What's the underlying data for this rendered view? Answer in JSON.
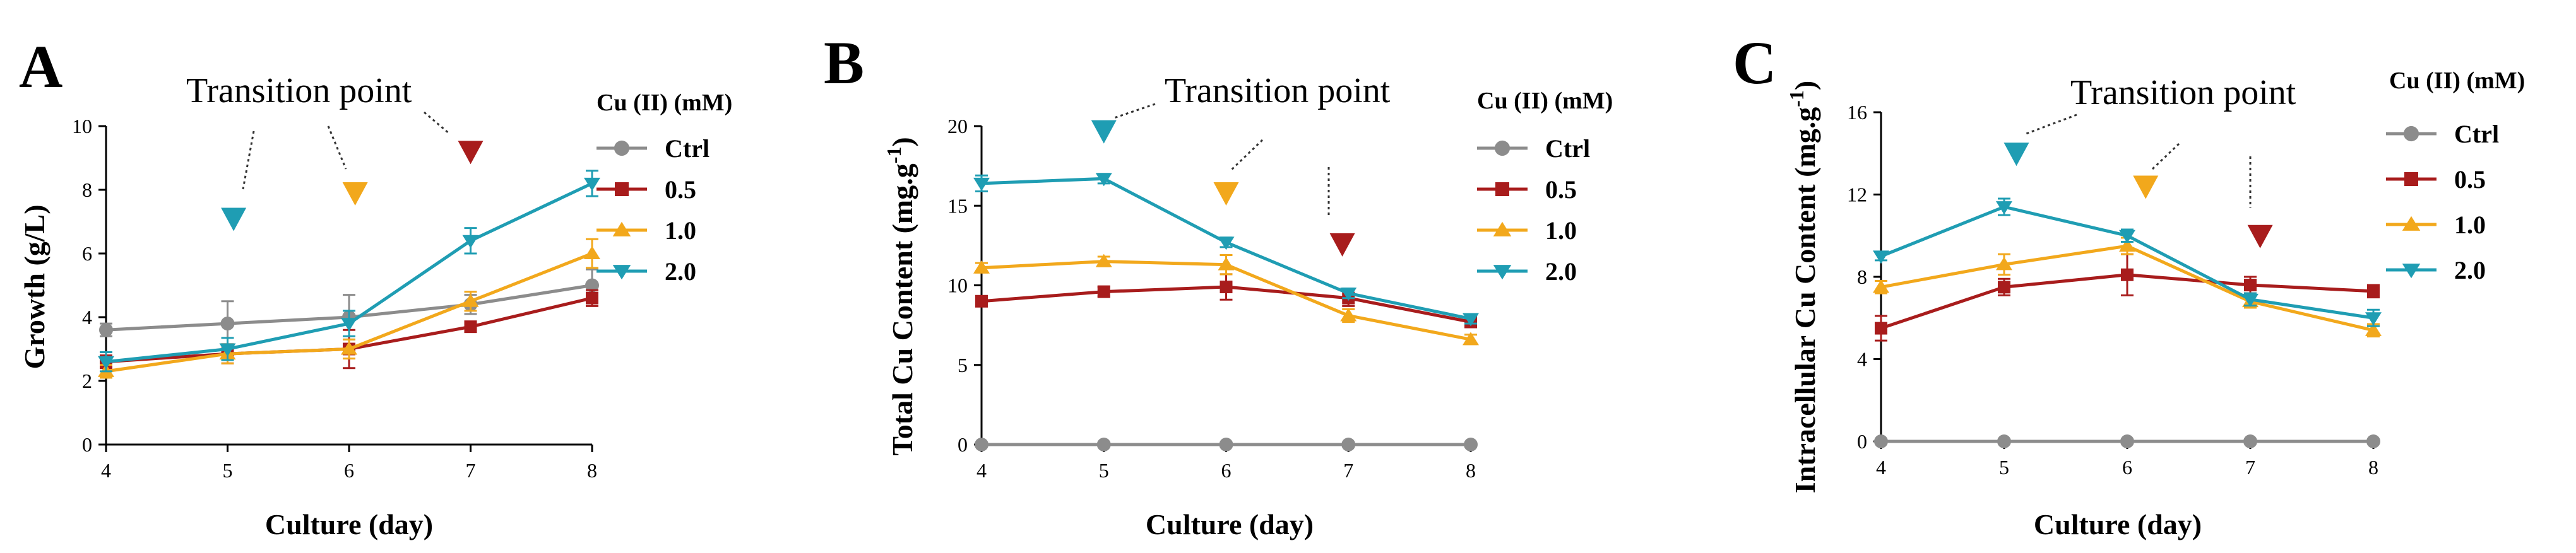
{
  "colors": {
    "Ctrl": "#8c8c8c",
    "0.5": "#a81c1c",
    "1.0": "#f2a81c",
    "2.0": "#1f9db3",
    "axis": "#000000",
    "annotation_line": "#333333"
  },
  "legend": {
    "title": "Cu (II) (mM)",
    "labels": [
      "Ctrl",
      "0.5",
      "1.0",
      "2.0"
    ]
  },
  "chart_data": [
    {
      "panel": "A",
      "type": "line",
      "title": "",
      "annotation": "Transition point",
      "xlabel": "Culture (day)",
      "ylabel": "Growth (g/L)",
      "ylabel_parts": [
        "Growth (g/L)"
      ],
      "x": [
        4,
        5,
        6,
        7,
        8
      ],
      "xlim": [
        4,
        8
      ],
      "ylim": [
        0,
        10
      ],
      "yticks": [
        0,
        2,
        4,
        6,
        8,
        10
      ],
      "series": [
        {
          "name": "Ctrl",
          "values": [
            3.6,
            3.8,
            4.0,
            4.4,
            5.0
          ],
          "errors": [
            0.2,
            0.7,
            0.7,
            0.3,
            0.5
          ]
        },
        {
          "name": "0.5",
          "values": [
            2.6,
            2.85,
            3.0,
            3.7,
            4.6
          ],
          "errors": [
            0.2,
            0.3,
            0.6,
            0.15,
            0.25
          ]
        },
        {
          "name": "1.0",
          "values": [
            2.3,
            2.85,
            3.0,
            4.5,
            6.0
          ],
          "errors": [
            0.2,
            0.3,
            0.3,
            0.3,
            0.45
          ]
        },
        {
          "name": "2.0",
          "values": [
            2.6,
            3.0,
            3.8,
            6.4,
            8.2
          ],
          "errors": [
            0.3,
            0.35,
            0.4,
            0.4,
            0.4
          ]
        }
      ],
      "markers": [
        {
          "series": "2.0",
          "x": 5.05,
          "y": 7.1
        },
        {
          "series": "1.0",
          "x": 6.05,
          "y": 7.9
        },
        {
          "series": "0.5",
          "x": 7.0,
          "y": 9.2
        }
      ]
    },
    {
      "panel": "B",
      "type": "line",
      "title": "",
      "annotation": "Transition point",
      "xlabel": "Culture (day)",
      "ylabel": "Total Cu Content (mg.g-1)",
      "ylabel_parts": [
        "Total Cu Content (mg.g",
        "-1",
        ")"
      ],
      "x": [
        4,
        5,
        6,
        7,
        8
      ],
      "xlim": [
        4,
        8
      ],
      "ylim": [
        0,
        20
      ],
      "yticks": [
        0,
        5,
        10,
        15,
        20
      ],
      "series": [
        {
          "name": "Ctrl",
          "values": [
            0,
            0,
            0,
            0,
            0
          ],
          "errors": [
            0,
            0,
            0,
            0,
            0
          ]
        },
        {
          "name": "0.5",
          "values": [
            9.0,
            9.6,
            9.9,
            9.2,
            7.7
          ],
          "errors": [
            0.3,
            0.3,
            0.8,
            0.5,
            0.3
          ]
        },
        {
          "name": "1.0",
          "values": [
            11.1,
            11.5,
            11.3,
            8.1,
            6.6
          ],
          "errors": [
            0.3,
            0.3,
            0.6,
            0.4,
            0.3
          ]
        },
        {
          "name": "2.0",
          "values": [
            16.4,
            16.7,
            12.7,
            9.5,
            7.9
          ],
          "errors": [
            0.5,
            0.3,
            0.3,
            0.3,
            0.3
          ]
        }
      ],
      "markers": [
        {
          "series": "2.0",
          "x": 5.0,
          "y": 19.7
        },
        {
          "series": "1.0",
          "x": 6.0,
          "y": 15.8
        },
        {
          "series": "0.5",
          "x": 6.95,
          "y": 12.6
        }
      ]
    },
    {
      "panel": "C",
      "type": "line",
      "title": "",
      "annotation": "Transition point",
      "xlabel": "Culture (day)",
      "ylabel": "Intracellular Cu Content (mg.g-1)",
      "ylabel_parts": [
        "Intracellular Cu Content (mg.g",
        "-1",
        ")"
      ],
      "x": [
        4,
        5,
        6,
        7,
        8
      ],
      "xlim": [
        4,
        8
      ],
      "ylim": [
        0,
        16
      ],
      "yticks": [
        0,
        4,
        8,
        12,
        16
      ],
      "series": [
        {
          "name": "Ctrl",
          "values": [
            0,
            0,
            0,
            0,
            0
          ],
          "errors": [
            0,
            0,
            0,
            0,
            0
          ]
        },
        {
          "name": "0.5",
          "values": [
            5.5,
            7.5,
            8.1,
            7.6,
            7.3
          ],
          "errors": [
            0.6,
            0.4,
            1.0,
            0.4,
            0.3
          ]
        },
        {
          "name": "1.0",
          "values": [
            7.5,
            8.6,
            9.5,
            6.8,
            5.4
          ],
          "errors": [
            0.3,
            0.5,
            0.4,
            0.3,
            0.3
          ]
        },
        {
          "name": "2.0",
          "values": [
            9.0,
            11.4,
            10.0,
            6.9,
            6.0
          ],
          "errors": [
            0.2,
            0.4,
            0.3,
            0.3,
            0.4
          ]
        }
      ],
      "markers": [
        {
          "series": "2.0",
          "x": 5.1,
          "y": 14.0
        },
        {
          "series": "1.0",
          "x": 6.15,
          "y": 12.4
        },
        {
          "series": "0.5",
          "x": 7.08,
          "y": 10.0
        }
      ]
    }
  ]
}
